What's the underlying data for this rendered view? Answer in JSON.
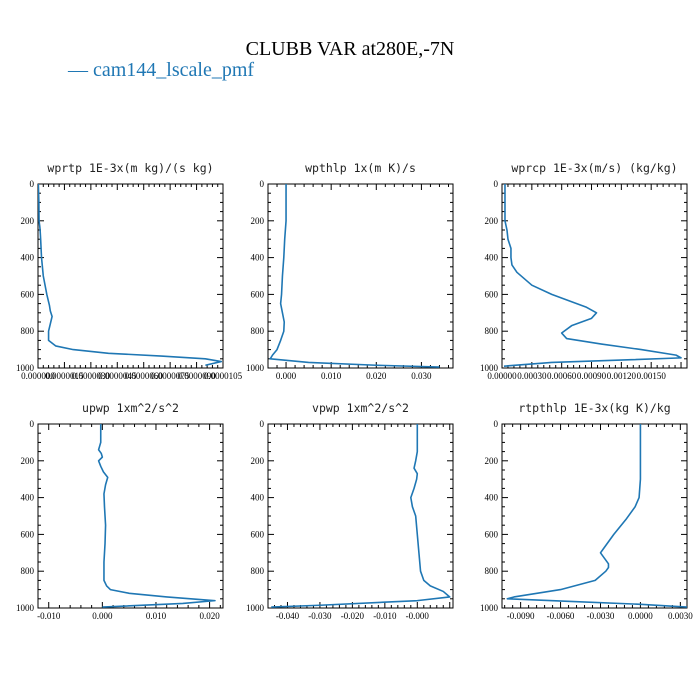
{
  "figure": {
    "title": "CLUBB VAR at280E,-7N",
    "legend_label": "cam144_lscale_pmf",
    "line_color": "#1f77b4"
  },
  "chart_data": [
    {
      "type": "line",
      "title": "wprtp  1E-3x(m kg)/(s kg)",
      "xlim": [
        0.0,
        1.05e-05
      ],
      "ylim": [
        1000,
        0
      ],
      "xticks": [
        0.0,
        1.5e-06,
        3e-06,
        4.5e-06,
        6e-06,
        7.5e-06,
        9e-06,
        1.05e-05
      ],
      "xtick_labels": [
        "0.000000",
        "0.0000015",
        "0.0000030",
        "0.0000045",
        "0.0000060",
        "0.0000075",
        "0.0000090",
        "0.0000105"
      ],
      "yticks": [
        0,
        200,
        400,
        600,
        800,
        1000
      ],
      "series": [
        {
          "x": [
            2e-08,
            5e-08,
            6e-08,
            1e-07,
            1.2e-07,
            1.5e-07,
            2e-07,
            3e-07,
            5e-07,
            6e-07,
            6.5e-07,
            7e-07,
            8e-07,
            7e-07,
            6e-07,
            6e-07,
            1e-06,
            2e-06,
            4e-06,
            7e-06,
            9.5e-06,
            1.04e-05,
            9.5e-06
          ],
          "y": [
            0,
            100,
            200,
            230,
            250,
            300,
            400,
            500,
            600,
            640,
            660,
            690,
            720,
            760,
            800,
            850,
            880,
            900,
            920,
            935,
            950,
            965,
            985
          ]
        }
      ]
    },
    {
      "type": "line",
      "title": "wpthlp  1x(m K)/s",
      "xlim": [
        -0.004,
        0.037
      ],
      "ylim": [
        1000,
        0
      ],
      "xticks": [
        0.0,
        0.01,
        0.02,
        0.03
      ],
      "xtick_labels": [
        "0.000",
        "0.010",
        "0.020",
        "0.030"
      ],
      "yticks": [
        0,
        200,
        400,
        600,
        800,
        1000
      ],
      "series": [
        {
          "x": [
            0.0,
            0.0,
            0.0,
            -0.0003,
            -0.0005,
            -0.0008,
            -0.001,
            -0.0012,
            -0.0008,
            -0.0004,
            -0.0005,
            -0.0012,
            -0.002,
            -0.003,
            -0.0035,
            0.005,
            0.02,
            0.034
          ],
          "y": [
            0,
            100,
            200,
            300,
            400,
            500,
            600,
            650,
            700,
            750,
            800,
            850,
            900,
            930,
            950,
            970,
            985,
            995
          ]
        }
      ]
    },
    {
      "type": "line",
      "title": "wprcp  1E-3x(m/s) (kg/kg)",
      "xlim": [
        0.0,
        0.00186
      ],
      "ylim": [
        1000,
        0
      ],
      "xticks": [
        0.0,
        0.0003,
        0.0006,
        0.0009,
        0.0012,
        0.0015
      ],
      "xtick_labels": [
        "0.00000",
        "0.00030",
        "0.00060",
        "0.00090",
        "0.00120",
        "0.00150"
      ],
      "yticks": [
        0,
        200,
        400,
        600,
        800,
        1000
      ],
      "series": [
        {
          "x": [
            3e-05,
            3e-05,
            3e-05,
            5e-05,
            6e-05,
            9e-05,
            9e-05,
            0.0001,
            0.00015,
            0.0003,
            0.0005,
            0.0007,
            0.00085,
            0.00095,
            0.0009,
            0.0007,
            0.0006,
            0.00065,
            0.001,
            0.0014,
            0.00175,
            0.0018,
            0.0013,
            0.0005,
            2e-05
          ],
          "y": [
            0,
            100,
            200,
            250,
            300,
            350,
            400,
            440,
            480,
            550,
            600,
            640,
            670,
            700,
            730,
            770,
            810,
            840,
            870,
            900,
            930,
            945,
            955,
            970,
            990
          ]
        }
      ]
    },
    {
      "type": "line",
      "title": "upwp  1xm^2/s^2",
      "xlim": [
        -0.012,
        0.0225
      ],
      "ylim": [
        1000,
        0
      ],
      "xticks": [
        -0.01,
        0.0,
        0.01,
        0.02
      ],
      "xtick_labels": [
        "-0.010",
        "0.000",
        "0.010",
        "0.020"
      ],
      "yticks": [
        0,
        200,
        400,
        600,
        800,
        1000
      ],
      "series": [
        {
          "x": [
            -0.0003,
            -0.0003,
            -0.0005,
            -0.0007,
            -0.0002,
            0.0,
            -0.0007,
            -0.0003,
            0.0002,
            0.001,
            0.0006,
            0.0003,
            0.0004,
            0.0006,
            0.0005,
            0.0003,
            0.0003,
            0.0008,
            0.0015,
            0.005,
            0.012,
            0.021,
            0.015,
            0.0
          ],
          "y": [
            0,
            100,
            120,
            140,
            160,
            180,
            200,
            230,
            260,
            290,
            330,
            380,
            450,
            550,
            650,
            750,
            850,
            880,
            900,
            920,
            940,
            960,
            975,
            995
          ]
        }
      ]
    },
    {
      "type": "line",
      "title": "vpwp  1xm^2/s^2",
      "xlim": [
        -0.046,
        0.011
      ],
      "ylim": [
        1000,
        0
      ],
      "xticks": [
        -0.04,
        -0.03,
        -0.02,
        -0.01,
        0.0
      ],
      "xtick_labels": [
        "-0.040",
        "-0.030",
        "-0.020",
        "-0.010",
        "-0.000"
      ],
      "yticks": [
        0,
        200,
        400,
        600,
        800,
        1000
      ],
      "series": [
        {
          "x": [
            0.0,
            0.0,
            0.0,
            -0.0005,
            -0.001,
            0.0,
            -0.0002,
            -0.001,
            -0.002,
            -0.0015,
            -0.0005,
            0.0,
            0.0005,
            0.001,
            0.002,
            0.004,
            0.008,
            0.01,
            0.0,
            -0.03,
            -0.045
          ],
          "y": [
            0,
            100,
            150,
            200,
            240,
            270,
            300,
            350,
            400,
            450,
            500,
            600,
            700,
            800,
            850,
            880,
            910,
            940,
            960,
            985,
            995
          ]
        }
      ]
    },
    {
      "type": "line",
      "title": "rtpthlp  1E-3x(kg K)/kg",
      "xlim": [
        -0.0104,
        0.0035
      ],
      "ylim": [
        1000,
        0
      ],
      "xticks": [
        -0.009,
        -0.006,
        -0.003,
        0.0,
        0.003
      ],
      "xtick_labels": [
        "-0.0090",
        "-0.0060",
        "-0.0030",
        "0.0000",
        "0.0030"
      ],
      "yticks": [
        0,
        200,
        400,
        600,
        800,
        1000
      ],
      "series": [
        {
          "x": [
            0.0,
            0.0,
            0.0,
            -0.0001,
            -0.0004,
            -0.0011,
            -0.002,
            -0.0028,
            -0.003,
            -0.0027,
            -0.0024,
            -0.0024,
            -0.0026,
            -0.0034,
            -0.006,
            -0.0095,
            -0.01,
            -0.005,
            0.0,
            0.0035
          ],
          "y": [
            0,
            100,
            300,
            400,
            450,
            520,
            600,
            680,
            700,
            730,
            760,
            780,
            800,
            850,
            900,
            940,
            950,
            965,
            980,
            995
          ]
        }
      ]
    }
  ]
}
